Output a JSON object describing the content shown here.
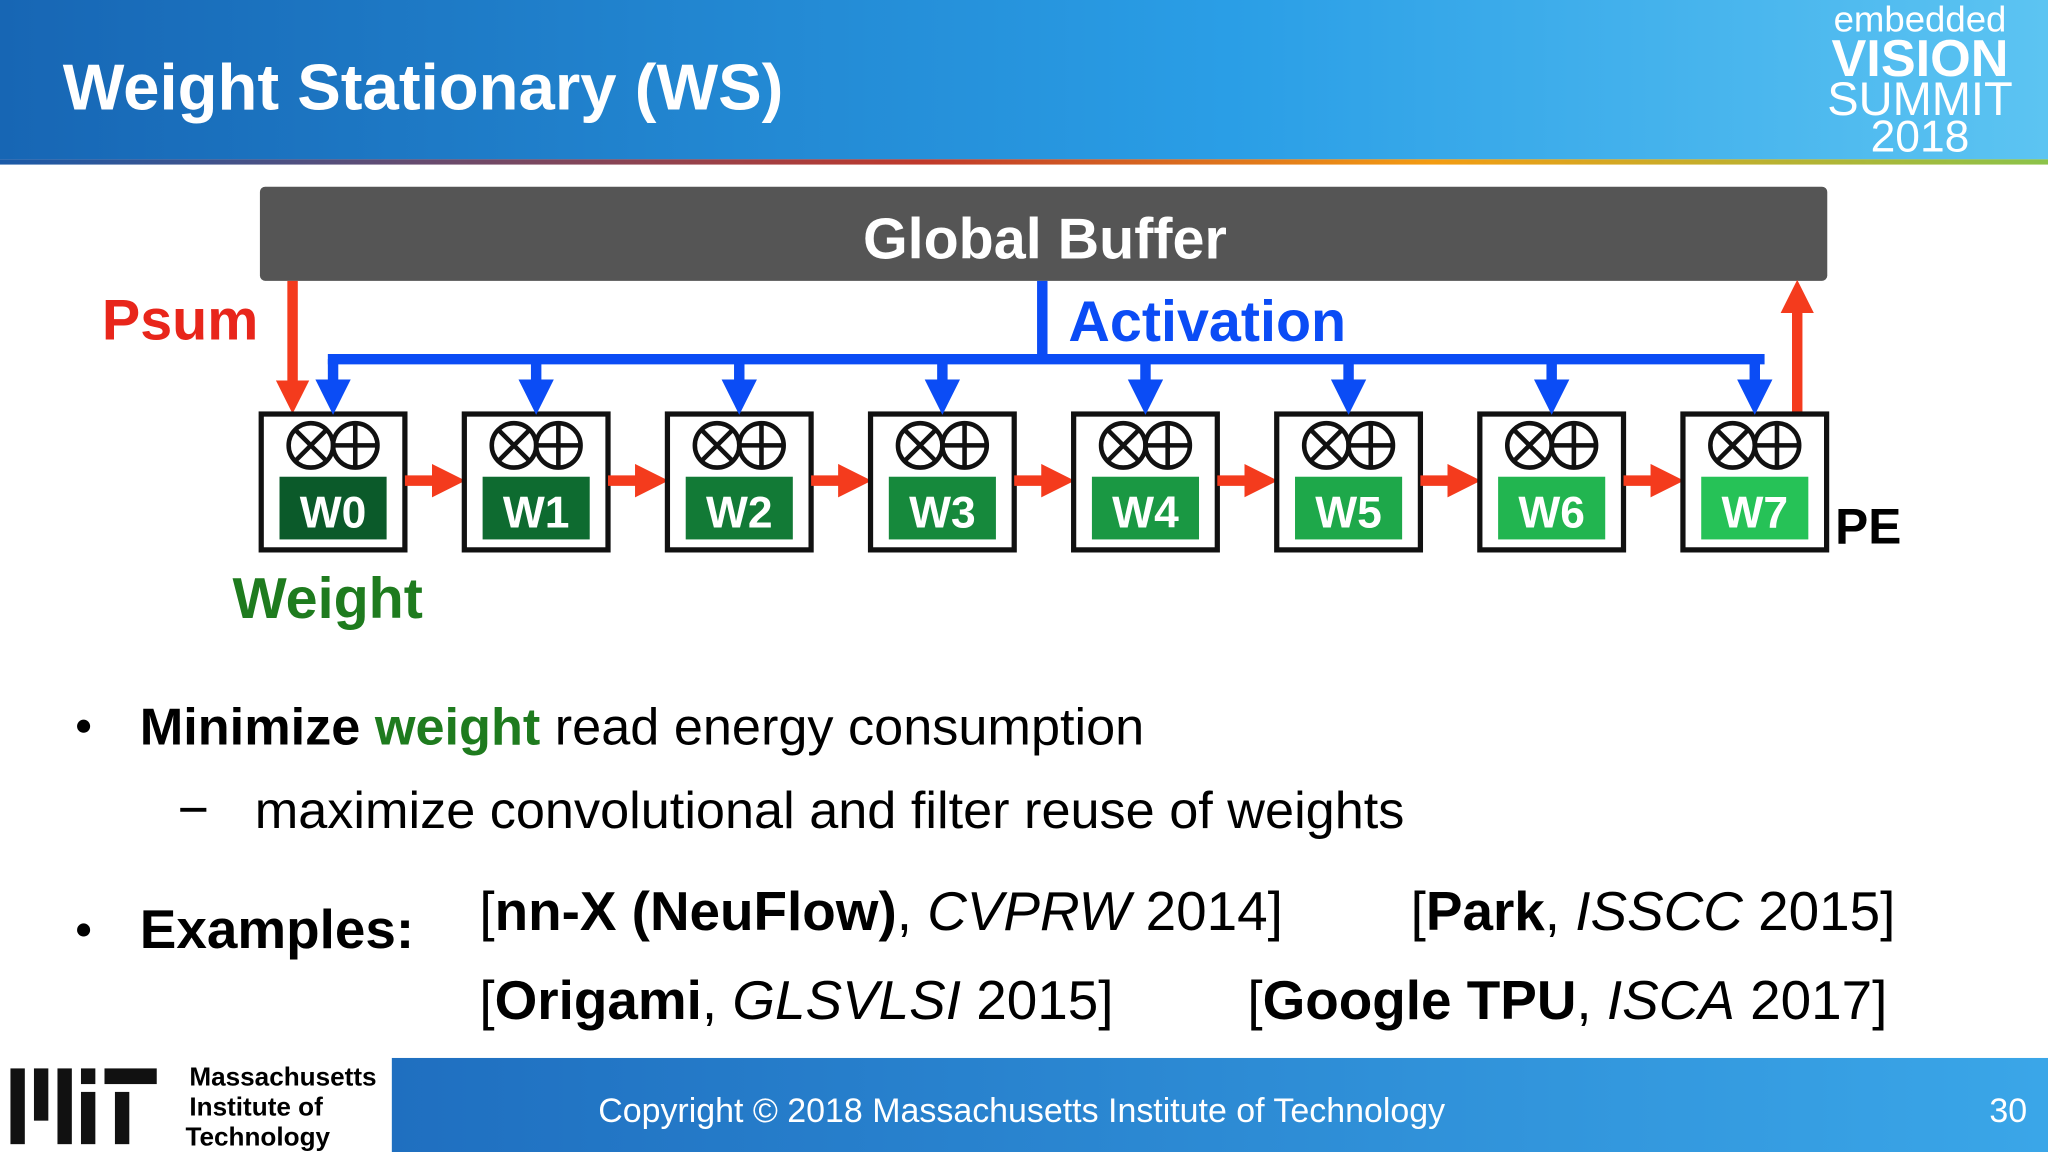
{
  "header": {
    "title": "Weight Stationary (WS)",
    "logo": [
      "embedded",
      "VISION",
      "SUMMIT",
      "2018"
    ]
  },
  "diagram": {
    "buffer": "Global Buffer",
    "psum": "Psum",
    "activation": "Activation",
    "weight": "Weight",
    "pe": "PE",
    "pes": [
      "W0",
      "W1",
      "W2",
      "W3",
      "W4",
      "W5",
      "W6",
      "W7"
    ]
  },
  "bullets": {
    "main": [
      "Minimize ",
      "weight",
      " read energy consumption"
    ],
    "sub": "maximize convolutional and filter reuse of weights",
    "examples": "Examples:",
    "refs": [
      [
        "[",
        "nn-X (NeuFlow)",
        ", ",
        "CVPRW",
        " 2014]"
      ],
      [
        "[",
        "Park",
        ", ",
        "ISSCC",
        " 2015]"
      ],
      [
        "[",
        "Origami",
        ", ",
        "GLSVLSI",
        " 2015]"
      ],
      [
        "[",
        "Google TPU",
        ", ",
        "ISCA",
        " 2017]"
      ]
    ]
  },
  "footer": {
    "institution": [
      "Massachusetts",
      "Institute of",
      "Technology"
    ],
    "copyright": "Copyright © 2018 Massachusetts Institute of Technology",
    "page": "30"
  }
}
